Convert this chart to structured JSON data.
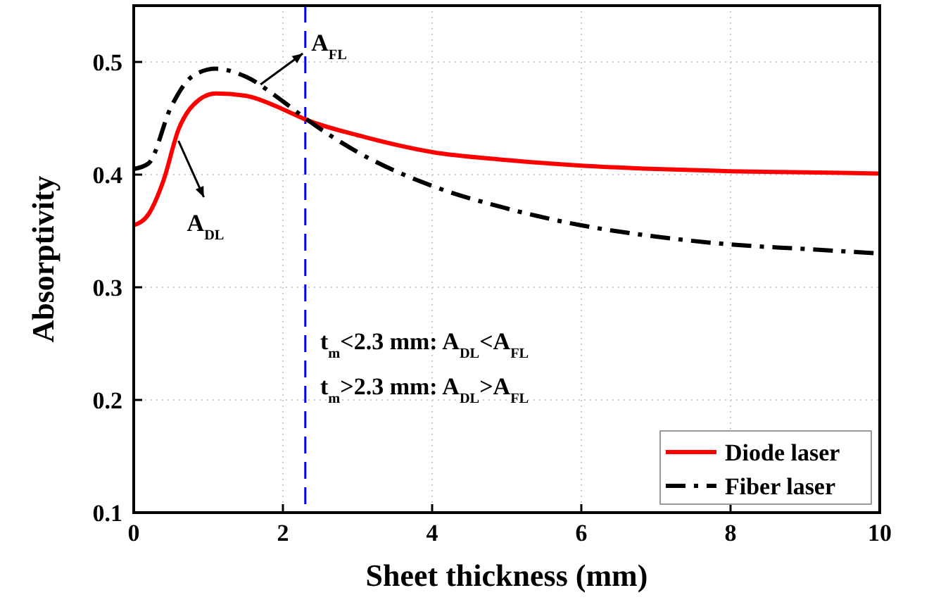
{
  "chart_data": {
    "type": "line",
    "xlabel": "Sheet thickness (mm)",
    "ylabel": "Absorptivity",
    "xlim": [
      0,
      10
    ],
    "xticks": [
      0,
      2,
      4,
      6,
      8,
      10
    ],
    "ylim": [
      0.1,
      0.55
    ],
    "yticks": [
      0.1,
      0.2,
      0.3,
      0.4,
      0.5
    ],
    "grid": true,
    "legend": "bottom right",
    "series": [
      {
        "name": "Diode laser",
        "color": "#ff0000",
        "line_style": "solid",
        "x": [
          0,
          0.2,
          0.4,
          0.6,
          0.8,
          1.1,
          1.5,
          2,
          2.3,
          3,
          4,
          5,
          6,
          7,
          8,
          9,
          10
        ],
        "values": [
          0.355,
          0.365,
          0.395,
          0.44,
          0.462,
          0.472,
          0.47,
          0.458,
          0.449,
          0.435,
          0.42,
          0.413,
          0.408,
          0.405,
          0.403,
          0.402,
          0.401
        ]
      },
      {
        "name": "Fiber laser",
        "color": "#000000",
        "line_style": "dashdot",
        "x": [
          0,
          0.2,
          0.5,
          0.8,
          1.1,
          1.5,
          2,
          2.3,
          3,
          4,
          5,
          6,
          7,
          8,
          9,
          10
        ],
        "values": [
          0.405,
          0.41,
          0.46,
          0.488,
          0.494,
          0.487,
          0.465,
          0.45,
          0.42,
          0.39,
          0.37,
          0.355,
          0.345,
          0.338,
          0.334,
          0.33
        ]
      }
    ],
    "ref_lines": [
      {
        "axis": "x",
        "value": 2.3,
        "color": "#0000ff",
        "line_style": "dashed"
      }
    ],
    "annotations": [
      {
        "text": "A$_{FL}$",
        "x": 1.7,
        "y": 0.48
      },
      {
        "text": "A$_{DL}$",
        "x": 0.6,
        "y": 0.43
      },
      "t$_{m}$<2.3 mm: A$_{DL}$<A$_{FL}$",
      "t$_{m}$>2.3 mm: A$_{DL}$>A$_{FL}$"
    ]
  }
}
